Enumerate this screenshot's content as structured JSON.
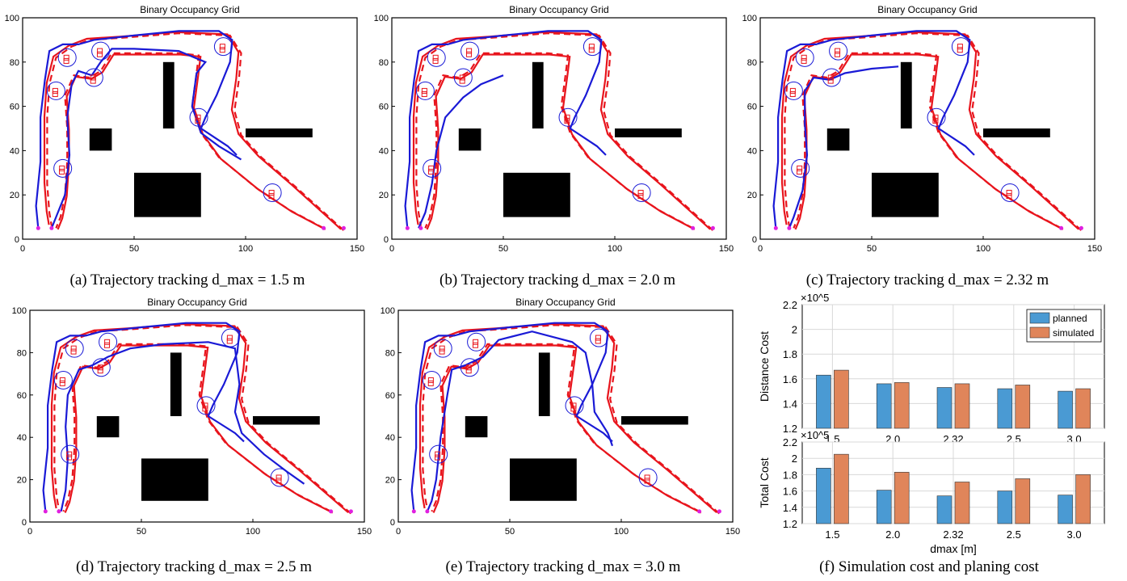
{
  "panels": [
    {
      "title": "Binary Occupancy Grid",
      "caption": "(a) Trajectory tracking d_max = 1.5 m",
      "dmax": "1.5"
    },
    {
      "title": "Binary Occupancy Grid",
      "caption": "(b) Trajectory tracking d_max = 2.0 m",
      "dmax": "2.0"
    },
    {
      "title": "Binary Occupancy Grid",
      "caption": "(c) Trajectory tracking d_max = 2.32 m",
      "dmax": "2.32"
    },
    {
      "title": "Binary Occupancy Grid",
      "caption": "(d) Trajectory tracking d_max = 2.5 m",
      "dmax": "2.5"
    },
    {
      "title": "Binary Occupancy Grid",
      "caption": "(e) Trajectory tracking d_max = 3.0 m",
      "dmax": "3.0"
    }
  ],
  "panel_f_caption": "(f) Simulation cost and planing cost",
  "colors": {
    "planned": "#4a9ad3",
    "simulated": "#e0855a",
    "red": "#e8141c",
    "blue": "#1a1ad6",
    "magenta": "#e020e0"
  },
  "chart_data": [
    {
      "type": "bar",
      "title": "",
      "xlabel": "",
      "ylabel": "Distance Cost",
      "exponent": "×10^5",
      "categories": [
        "1.5",
        "2.0",
        "2.32",
        "2.5",
        "3.0"
      ],
      "ylim": [
        1.2,
        2.2
      ],
      "yticks": [
        "1.2",
        "1.4",
        "1.6",
        "1.8",
        "2",
        "2.2"
      ],
      "legend": "top-right",
      "grid": true,
      "series": [
        {
          "name": "planned",
          "values": [
            1.63,
            1.56,
            1.53,
            1.52,
            1.5
          ]
        },
        {
          "name": "simulated",
          "values": [
            1.67,
            1.57,
            1.56,
            1.55,
            1.52
          ]
        }
      ]
    },
    {
      "type": "bar",
      "title": "",
      "xlabel": "dmax [m]",
      "ylabel": "Total Cost",
      "exponent": "×10^5",
      "categories": [
        "1.5",
        "2.0",
        "2.32",
        "2.5",
        "3.0"
      ],
      "ylim": [
        1.2,
        2.2
      ],
      "yticks": [
        "1.2",
        "1.4",
        "1.6",
        "1.8",
        "2",
        "2.2"
      ],
      "grid": true,
      "series": [
        {
          "name": "planned",
          "values": [
            1.88,
            1.61,
            1.54,
            1.6,
            1.55
          ]
        },
        {
          "name": "simulated",
          "values": [
            2.05,
            1.83,
            1.71,
            1.75,
            1.8
          ]
        }
      ]
    }
  ],
  "map": {
    "xlim": [
      0,
      150
    ],
    "ylim": [
      0,
      100
    ],
    "xticks": [
      "0",
      "50",
      "100",
      "150"
    ],
    "yticks": [
      "0",
      "20",
      "40",
      "60",
      "80",
      "100"
    ]
  }
}
